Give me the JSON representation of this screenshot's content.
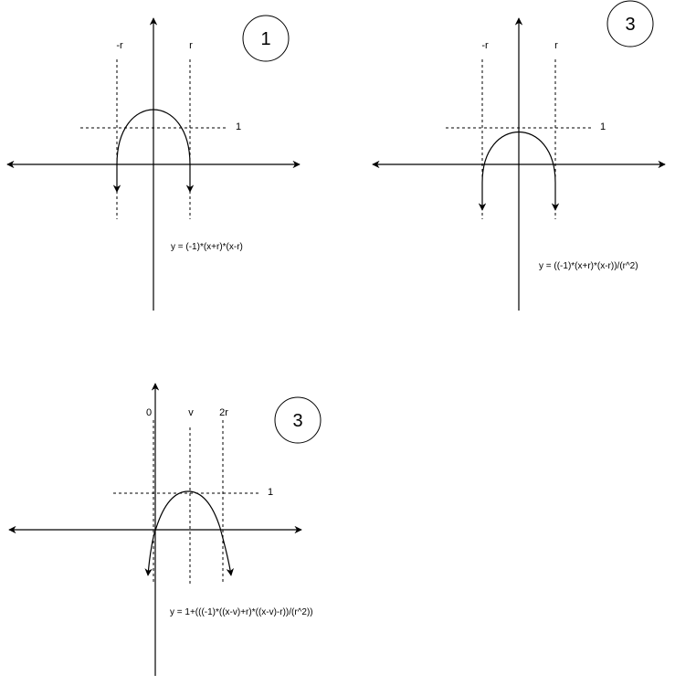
{
  "diagram1": {
    "label_neg_r": "-r",
    "label_r": "r",
    "label_one": "1",
    "badge": "1",
    "equation": "y = (-1)*(x+r)*(x-r)"
  },
  "diagram2": {
    "label_neg_r": "-r",
    "label_r": "r",
    "label_one": "1",
    "badge": "3",
    "equation": "y = ((-1)*(x+r)*(x-r))/(r^2)"
  },
  "diagram3": {
    "label_zero": "0",
    "label_v": "v",
    "label_2r": "2r",
    "label_one": "1",
    "badge": "3",
    "equation": "y = 1+(((-1)*((x-v)+r)*((x-v)-r))/(r^2))"
  }
}
